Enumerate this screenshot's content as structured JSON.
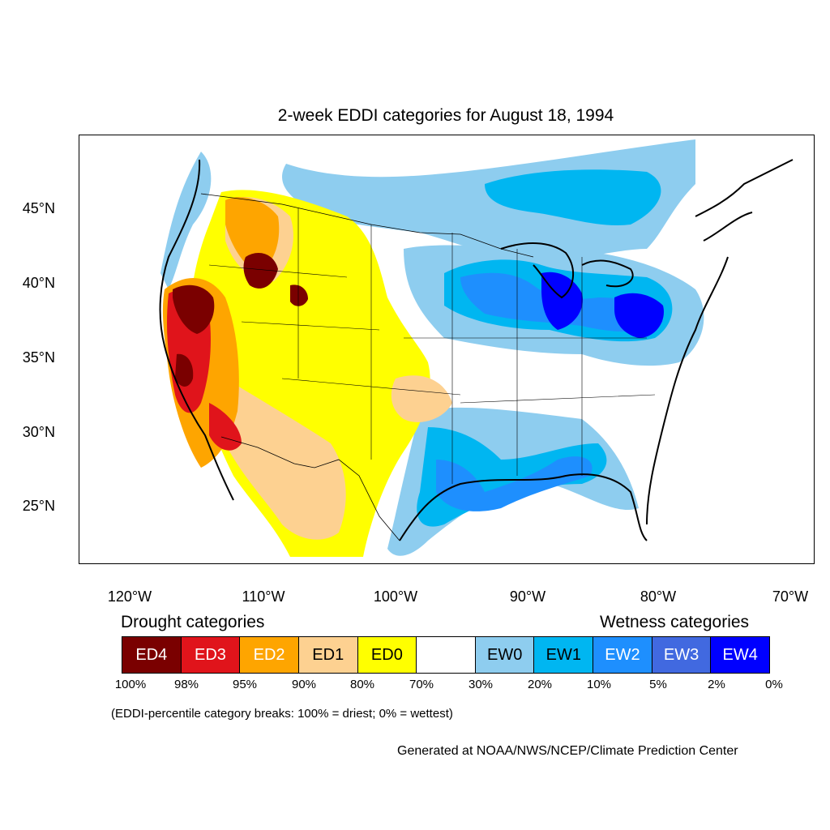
{
  "title": "2-week EDDI categories for August 18, 1994",
  "latitude_labels": [
    "45°N",
    "40°N",
    "35°N",
    "30°N",
    "25°N"
  ],
  "longitude_labels": [
    "120°W",
    "110°W",
    "100°W",
    "90°W",
    "80°W",
    "70°W"
  ],
  "drought_heading": "Drought categories",
  "wetness_heading": "Wetness categories",
  "legend": [
    {
      "label": "ED4",
      "color": "#7a0000",
      "text_color": "#ffffff"
    },
    {
      "label": "ED3",
      "color": "#e0141b",
      "text_color": "#ffffff"
    },
    {
      "label": "ED2",
      "color": "#fea500",
      "text_color": "#ffffff"
    },
    {
      "label": "ED1",
      "color": "#fdd191",
      "text_color": "#000000"
    },
    {
      "label": "ED0",
      "color": "#ffff00",
      "text_color": "#000000"
    },
    {
      "label": "",
      "color": "#ffffff",
      "text_color": "#000000"
    },
    {
      "label": "EW0",
      "color": "#8ecdef",
      "text_color": "#000000"
    },
    {
      "label": "EW1",
      "color": "#00b6f1",
      "text_color": "#000000"
    },
    {
      "label": "EW2",
      "color": "#1e8ffe",
      "text_color": "#ffffff"
    },
    {
      "label": "EW3",
      "color": "#4169e0",
      "text_color": "#ffffff"
    },
    {
      "label": "EW4",
      "color": "#0000ff",
      "text_color": "#ffffff"
    }
  ],
  "percentiles": [
    "100%",
    "98%",
    "95%",
    "90%",
    "80%",
    "70%",
    "30%",
    "20%",
    "10%",
    "5%",
    "2%",
    "0%"
  ],
  "note": "(EDDI-percentile category breaks: 100% = driest; 0% = wettest)",
  "credit": "Generated at NOAA/NWS/NCEP/Climate Prediction Center"
}
